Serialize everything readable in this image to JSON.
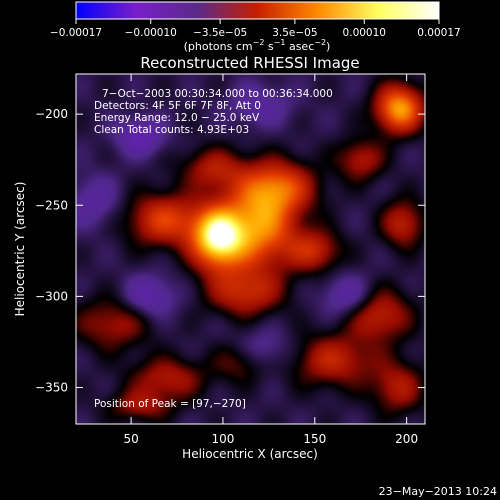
{
  "chart_data": {
    "type": "heatmap",
    "title": "Reconstructed RHESSI Image",
    "xlabel": "Heliocentric X (arcsec)",
    "ylabel": "Heliocentric Y (arcsec)",
    "xlim": [
      20,
      210
    ],
    "ylim": [
      -370,
      -178
    ],
    "x_ticks": [
      50,
      100,
      150,
      200
    ],
    "x_tick_labels": [
      "50",
      "100",
      "150",
      "200"
    ],
    "y_ticks": [
      -200,
      -250,
      -300,
      -350
    ],
    "y_tick_labels": [
      "−200",
      "−250",
      "−300",
      "−350"
    ],
    "colorbar": {
      "range": [
        -0.00017,
        0.00017
      ],
      "ticks": [
        -0.00017,
        -0.0001,
        -3.5e-05,
        3.5e-05,
        0.0001,
        0.00017
      ],
      "tick_labels": [
        "−0.00017",
        "−0.00010",
        "−3.5e−05",
        "3.5e−05",
        "0.00010",
        "0.00017"
      ],
      "units_prefix": "(photons cm",
      "units_sup1": "−2",
      "units_mid": " s",
      "units_sup2": "−1",
      "units_mid2": " asec",
      "units_sup3": "−2",
      "units_suffix": ")",
      "colors": [
        "#0000ff",
        "#7a1fc8",
        "#5a2a8a",
        "#c81e00",
        "#ff8a00",
        "#ffff60",
        "#ffffff"
      ]
    },
    "annotations": [
      "7−Oct−2003 00:30:34.000 to 00:36:34.000",
      "Detectors: 4F 5F 6F 7F 8F, Att 0",
      "Energy Range: 12.0 − 25.0 keV",
      "Clean    Total counts: 4.93E+03"
    ],
    "peak_label": "Position of Peak = [97,−270]",
    "peak": {
      "x": 97,
      "y": -270
    },
    "blobs": [
      {
        "x": 97,
        "y": -268,
        "sx": 10,
        "sy": 12,
        "a": 1.0
      },
      {
        "x": 120,
        "y": -262,
        "sx": 14,
        "sy": 16,
        "a": 0.72
      },
      {
        "x": 130,
        "y": -240,
        "sx": 14,
        "sy": 10,
        "a": 0.55
      },
      {
        "x": 68,
        "y": -258,
        "sx": 14,
        "sy": 10,
        "a": 0.52
      },
      {
        "x": 150,
        "y": -275,
        "sx": 10,
        "sy": 8,
        "a": 0.4
      },
      {
        "x": 112,
        "y": -298,
        "sx": 14,
        "sy": 9,
        "a": 0.42
      },
      {
        "x": 95,
        "y": -230,
        "sx": 12,
        "sy": 8,
        "a": 0.35
      },
      {
        "x": 196,
        "y": -197,
        "sx": 9,
        "sy": 9,
        "a": 0.8
      },
      {
        "x": 175,
        "y": -225,
        "sx": 9,
        "sy": 8,
        "a": 0.35
      },
      {
        "x": 198,
        "y": -260,
        "sx": 8,
        "sy": 9,
        "a": 0.4
      },
      {
        "x": 185,
        "y": -310,
        "sx": 12,
        "sy": 10,
        "a": 0.42
      },
      {
        "x": 160,
        "y": -335,
        "sx": 16,
        "sy": 10,
        "a": 0.4
      },
      {
        "x": 195,
        "y": -350,
        "sx": 10,
        "sy": 10,
        "a": 0.35
      },
      {
        "x": 40,
        "y": -315,
        "sx": 14,
        "sy": 10,
        "a": 0.32
      },
      {
        "x": 70,
        "y": -345,
        "sx": 14,
        "sy": 8,
        "a": 0.35
      },
      {
        "x": 110,
        "y": -335,
        "sx": 10,
        "sy": 8,
        "a": 0.3
      },
      {
        "x": 55,
        "y": -360,
        "sx": 12,
        "sy": 6,
        "a": 0.3
      },
      {
        "x": 55,
        "y": -212,
        "sx": 9,
        "sy": 7,
        "a": -0.35
      },
      {
        "x": 120,
        "y": -195,
        "sx": 12,
        "sy": 8,
        "a": -0.22
      },
      {
        "x": 168,
        "y": -300,
        "sx": 10,
        "sy": 8,
        "a": -0.28
      },
      {
        "x": 60,
        "y": -300,
        "sx": 10,
        "sy": 8,
        "a": -0.3
      },
      {
        "x": 120,
        "y": -330,
        "sx": 12,
        "sy": 8,
        "a": -0.25
      },
      {
        "x": 30,
        "y": -248,
        "sx": 10,
        "sy": 10,
        "a": -0.22
      }
    ],
    "grid": false
  },
  "timestamp": "23−May−2013 10:24"
}
